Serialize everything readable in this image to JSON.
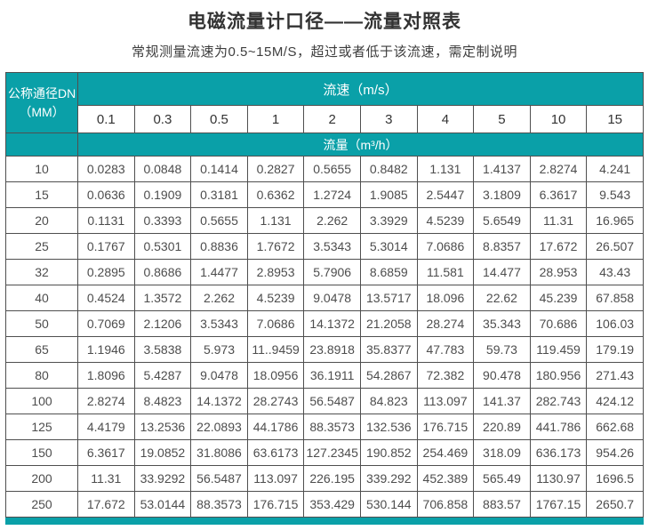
{
  "page": {
    "title": "电磁流量计口径——流量对照表",
    "subtitle": "常规测量流速为0.5~15M/S，超过或者低于该流速，需定制说明"
  },
  "colors": {
    "teal": "#0aa0a8",
    "border": "#4f4f4f",
    "text": "#4d4d4d",
    "header-text": "#ffffff",
    "title": "#333333"
  },
  "table": {
    "dn_header_line1": "公称通径DN",
    "dn_header_line2": "（MM）",
    "speed_header": "流速（m/s）",
    "flow_header": "流量（m³/h）",
    "speeds": [
      "0.1",
      "0.3",
      "0.5",
      "1",
      "2",
      "3",
      "4",
      "5",
      "10",
      "15"
    ],
    "rows": [
      {
        "dn": "10",
        "values": [
          "0.0283",
          "0.0848",
          "0.1414",
          "0.2827",
          "0.5655",
          "0.8482",
          "1.131",
          "1.4137",
          "2.8274",
          "4.241"
        ]
      },
      {
        "dn": "15",
        "values": [
          "0.0636",
          "0.1909",
          "0.3181",
          "0.6362",
          "1.2724",
          "1.9085",
          "2.5447",
          "3.1809",
          "6.3617",
          "9.543"
        ]
      },
      {
        "dn": "20",
        "values": [
          "0.1131",
          "0.3393",
          "0.5655",
          "1.131",
          "2.262",
          "3.3929",
          "4.5239",
          "5.6549",
          "11.31",
          "16.965"
        ]
      },
      {
        "dn": "25",
        "values": [
          "0.1767",
          "0.5301",
          "0.8836",
          "1.7672",
          "3.5343",
          "5.3014",
          "7.0686",
          "8.8357",
          "17.672",
          "26.507"
        ]
      },
      {
        "dn": "32",
        "values": [
          "0.2895",
          "0.8686",
          "1.4477",
          "2.8953",
          "5.7906",
          "8.6859",
          "11.581",
          "14.477",
          "28.953",
          "43.43"
        ]
      },
      {
        "dn": "40",
        "values": [
          "0.4524",
          "1.3572",
          "2.262",
          "4.5239",
          "9.0478",
          "13.5717",
          "18.096",
          "22.62",
          "45.239",
          "67.858"
        ]
      },
      {
        "dn": "50",
        "values": [
          "0.7069",
          "2.1206",
          "3.5343",
          "7.0686",
          "14.1372",
          "21.2058",
          "28.274",
          "35.343",
          "70.686",
          "106.03"
        ]
      },
      {
        "dn": "65",
        "values": [
          "1.1946",
          "3.5838",
          "5.973",
          "11..9459",
          "23.8918",
          "35.8377",
          "47.783",
          "59.73",
          "119.459",
          "179.19"
        ]
      },
      {
        "dn": "80",
        "values": [
          "1.8096",
          "5.4287",
          "9.0478",
          "18.0956",
          "36.1911",
          "54.2867",
          "72.382",
          "90.478",
          "180.956",
          "271.43"
        ]
      },
      {
        "dn": "100",
        "values": [
          "2.8274",
          "8.4823",
          "14.1372",
          "28.2743",
          "56.5487",
          "84.823",
          "113.097",
          "141.37",
          "282.743",
          "424.12"
        ]
      },
      {
        "dn": "125",
        "values": [
          "4.4179",
          "13.2536",
          "22.0893",
          "44.1786",
          "88.3573",
          "132.536",
          "176.715",
          "220.89",
          "441.786",
          "662.68"
        ]
      },
      {
        "dn": "150",
        "values": [
          "6.3617",
          "19.0852",
          "31.8086",
          "63.6173",
          "127.2345",
          "190.852",
          "254.469",
          "318.09",
          "636.173",
          "954.26"
        ]
      },
      {
        "dn": "200",
        "values": [
          "11.31",
          "33.9292",
          "56.5487",
          "113.097",
          "226.195",
          "339.292",
          "452.389",
          "565.49",
          "1130.97",
          "1696.5"
        ]
      },
      {
        "dn": "250",
        "values": [
          "17.672",
          "53.0144",
          "88.3573",
          "176.715",
          "353.429",
          "530.144",
          "706.858",
          "883.57",
          "1767.15",
          "2650.7"
        ]
      }
    ]
  },
  "chart_data": {
    "type": "table",
    "title": "电磁流量计口径——流量对照表",
    "subtitle": "常规测量流速为0.5~15M/S，超过或者低于该流速，需定制说明",
    "row_header": "公称通径DN（MM）",
    "column_group_label": "流速（m/s）",
    "value_label": "流量（m³/h）",
    "columns_speed_m_per_s": [
      0.1,
      0.3,
      0.5,
      1,
      2,
      3,
      4,
      5,
      10,
      15
    ],
    "rows_dn_mm": [
      10,
      15,
      20,
      25,
      32,
      40,
      50,
      65,
      80,
      100,
      125,
      150,
      200,
      250
    ],
    "flow_values_m3_per_h": [
      [
        "0.0283",
        "0.0848",
        "0.1414",
        "0.2827",
        "0.5655",
        "0.8482",
        "1.131",
        "1.4137",
        "2.8274",
        "4.241"
      ],
      [
        "0.0636",
        "0.1909",
        "0.3181",
        "0.6362",
        "1.2724",
        "1.9085",
        "2.5447",
        "3.1809",
        "6.3617",
        "9.543"
      ],
      [
        "0.1131",
        "0.3393",
        "0.5655",
        "1.131",
        "2.262",
        "3.3929",
        "4.5239",
        "5.6549",
        "11.31",
        "16.965"
      ],
      [
        "0.1767",
        "0.5301",
        "0.8836",
        "1.7672",
        "3.5343",
        "5.3014",
        "7.0686",
        "8.8357",
        "17.672",
        "26.507"
      ],
      [
        "0.2895",
        "0.8686",
        "1.4477",
        "2.8953",
        "5.7906",
        "8.6859",
        "11.581",
        "14.477",
        "28.953",
        "43.43"
      ],
      [
        "0.4524",
        "1.3572",
        "2.262",
        "4.5239",
        "9.0478",
        "13.5717",
        "18.096",
        "22.62",
        "45.239",
        "67.858"
      ],
      [
        "0.7069",
        "2.1206",
        "3.5343",
        "7.0686",
        "14.1372",
        "21.2058",
        "28.274",
        "35.343",
        "70.686",
        "106.03"
      ],
      [
        "1.1946",
        "3.5838",
        "5.973",
        "11..9459",
        "23.8918",
        "35.8377",
        "47.783",
        "59.73",
        "119.459",
        "179.19"
      ],
      [
        "1.8096",
        "5.4287",
        "9.0478",
        "18.0956",
        "36.1911",
        "54.2867",
        "72.382",
        "90.478",
        "180.956",
        "271.43"
      ],
      [
        "2.8274",
        "8.4823",
        "14.1372",
        "28.2743",
        "56.5487",
        "84.823",
        "113.097",
        "141.37",
        "282.743",
        "424.12"
      ],
      [
        "4.4179",
        "13.2536",
        "22.0893",
        "44.1786",
        "88.3573",
        "132.536",
        "176.715",
        "220.89",
        "441.786",
        "662.68"
      ],
      [
        "6.3617",
        "19.0852",
        "31.8086",
        "63.6173",
        "127.2345",
        "190.852",
        "254.469",
        "318.09",
        "636.173",
        "954.26"
      ],
      [
        "11.31",
        "33.9292",
        "56.5487",
        "113.097",
        "226.195",
        "339.292",
        "452.389",
        "565.49",
        "1130.97",
        "1696.5"
      ],
      [
        "17.672",
        "53.0144",
        "88.3573",
        "176.715",
        "353.429",
        "530.144",
        "706.858",
        "883.57",
        "1767.15",
        "2650.7"
      ]
    ]
  }
}
